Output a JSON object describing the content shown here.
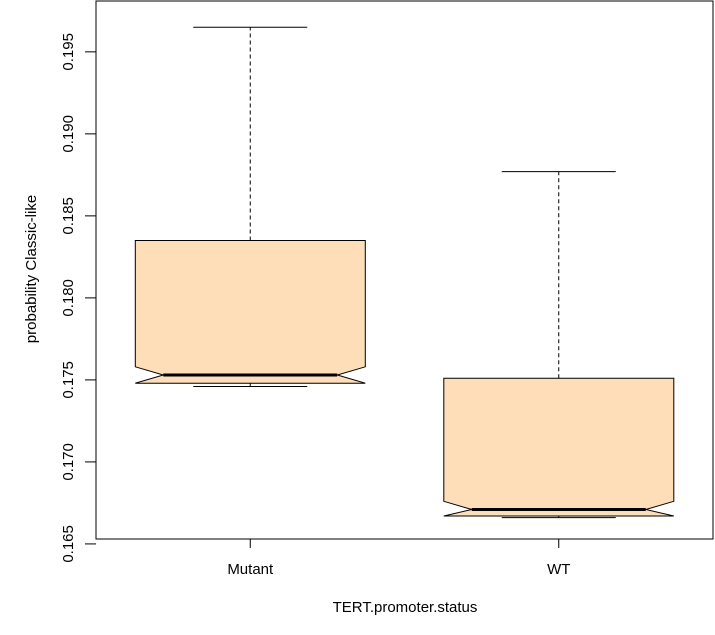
{
  "chart_data": {
    "type": "box",
    "notched": true,
    "xlabel": "TERT.promoter.status",
    "ylabel": "probability Classic-like",
    "ylim": [
      0.1653,
      0.1981
    ],
    "yticks": [
      "0.165",
      "0.170",
      "0.175",
      "0.180",
      "0.185",
      "0.190",
      "0.195"
    ],
    "fill_color": "#FDDEB9",
    "grid": false,
    "categories": [
      "Mutant",
      "WT"
    ],
    "boxes": [
      {
        "name": "Mutant",
        "whisker_low": 0.1746,
        "q1": 0.1748,
        "median": 0.1753,
        "q3": 0.1835,
        "whisker_high": 0.1965,
        "notch_low": 0.1748,
        "notch_high": 0.1758
      },
      {
        "name": "WT",
        "whisker_low": 0.1666,
        "q1": 0.1667,
        "median": 0.1671,
        "q3": 0.1751,
        "whisker_high": 0.1877,
        "notch_low": 0.1667,
        "notch_high": 0.1676
      }
    ]
  }
}
